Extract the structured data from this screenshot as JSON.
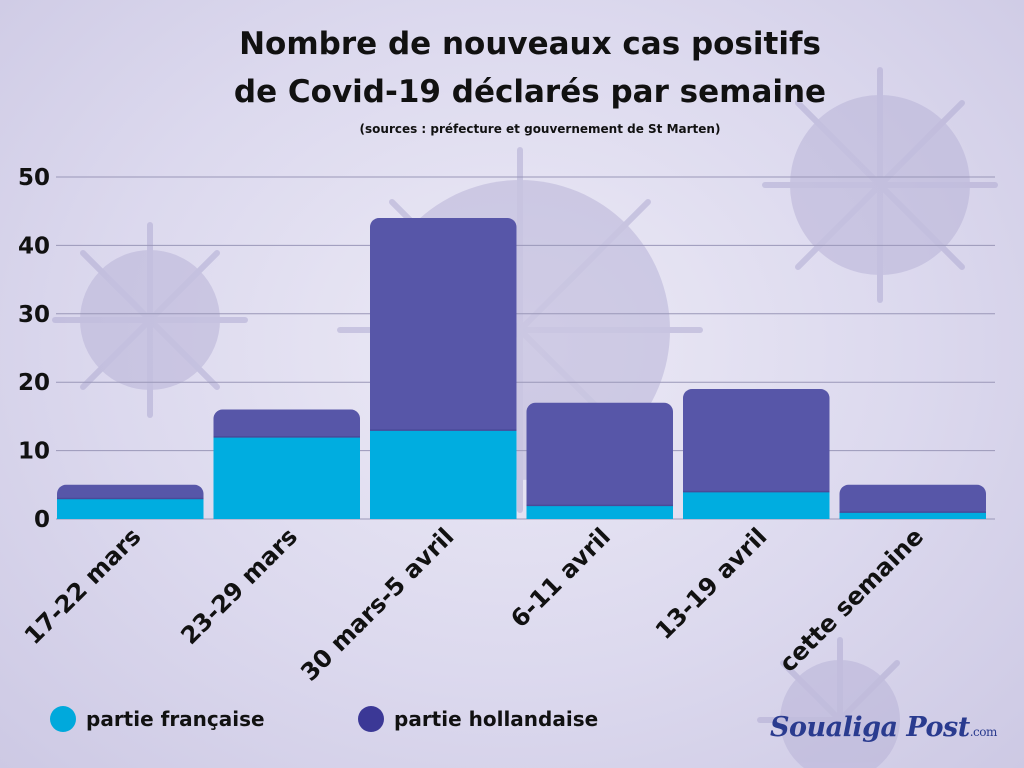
{
  "header": {
    "title_line1": "Nombre de nouveaux cas positifs",
    "title_line2": "de Covid-19  déclarés par semaine",
    "subtitle": "(sources : préfecture et gouvernement de St Marten)"
  },
  "legend": {
    "items": [
      {
        "label": "partie française",
        "color": "#00a9dc"
      },
      {
        "label": "partie hollandaise",
        "color": "#3b3896"
      }
    ]
  },
  "brand": {
    "name": "Soualiga Post",
    "suffix": ".com"
  },
  "colors": {
    "french": "#00ade0",
    "dutch": "#5756a8"
  },
  "chart_data": {
    "type": "bar",
    "stacked": true,
    "categories": [
      "17-22 mars",
      "23-29 mars",
      "30 mars-5 avril",
      "6-11 avril",
      "13-19 avril",
      "cette semaine"
    ],
    "series": [
      {
        "name": "partie française",
        "values": [
          3,
          12,
          13,
          2,
          4,
          1
        ]
      },
      {
        "name": "partie hollandaise",
        "values": [
          2,
          4,
          31,
          15,
          15,
          4
        ]
      }
    ],
    "ylim": [
      0,
      50
    ],
    "yticks": [
      0,
      10,
      20,
      30,
      40,
      50
    ],
    "grid": true,
    "legend_position": "bottom-left"
  }
}
